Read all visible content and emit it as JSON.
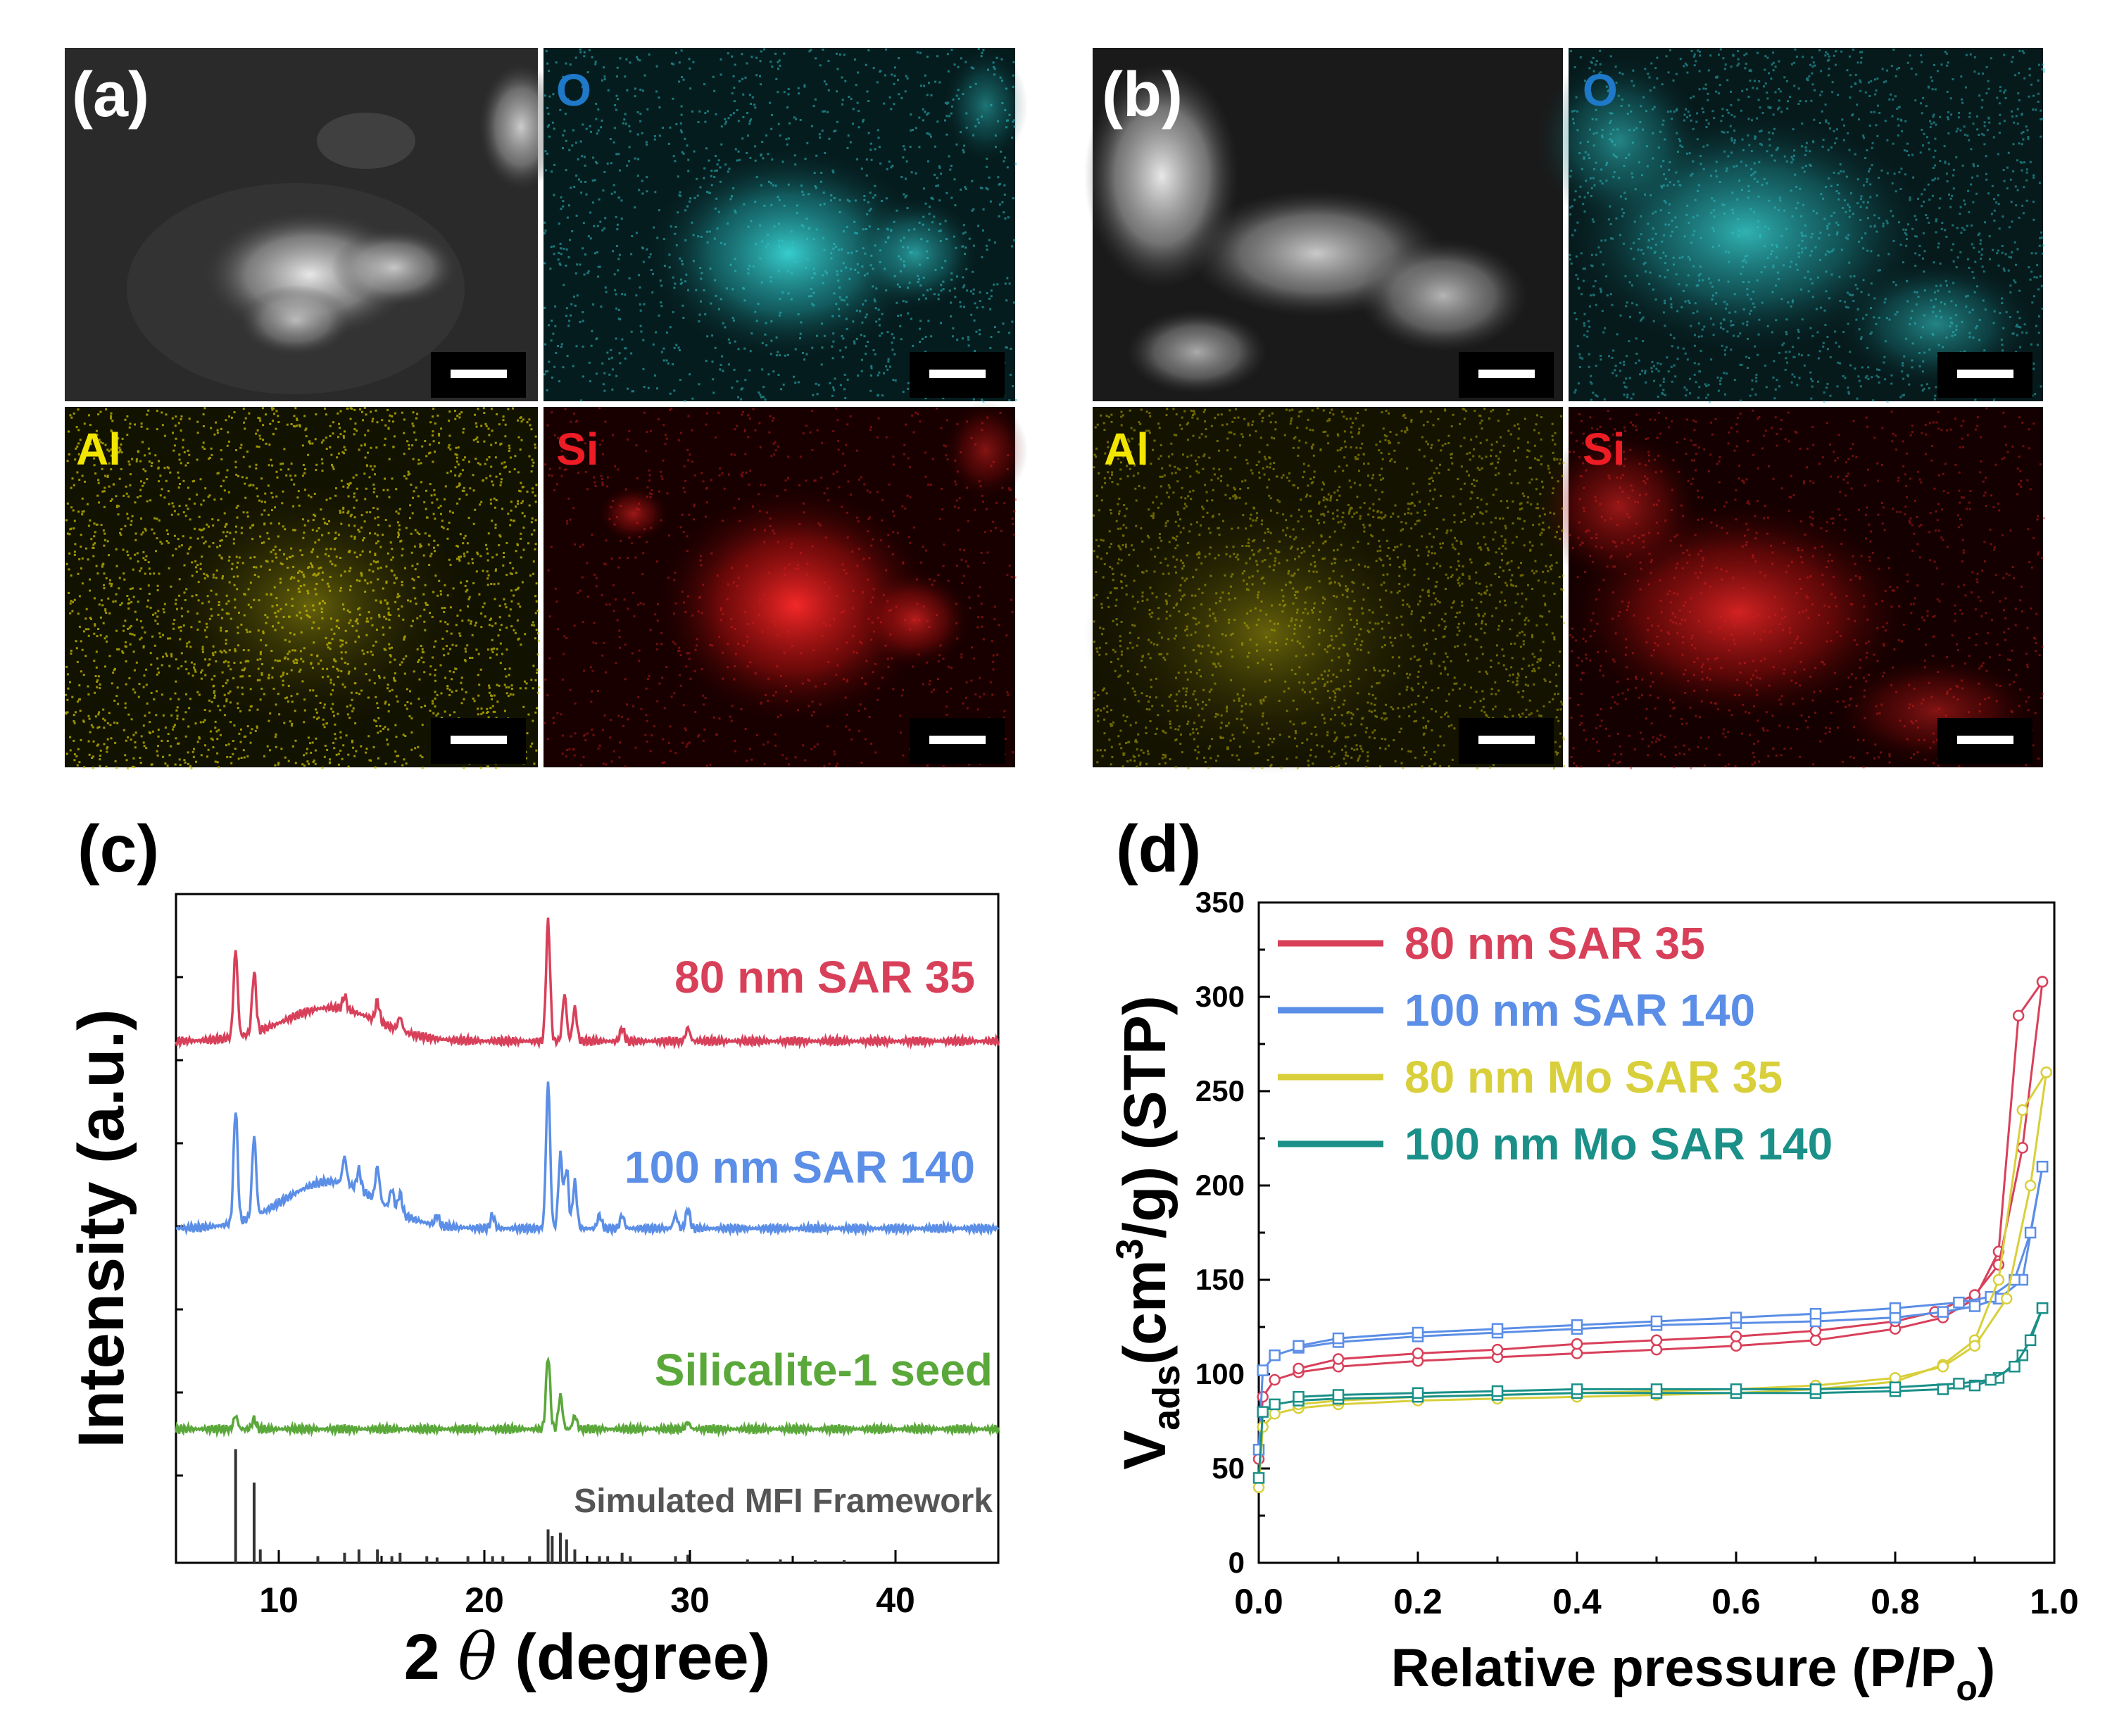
{
  "panels": {
    "a": {
      "label": "(a)",
      "tiles": [
        {
          "kind": "sem",
          "element": ""
        },
        {
          "kind": "map",
          "element": "O",
          "color": "#1f78c8",
          "dot": "#2ec6cc"
        },
        {
          "kind": "map",
          "element": "Al",
          "color": "#f2e600",
          "dot": "#c8c000"
        },
        {
          "kind": "map",
          "element": "Si",
          "color": "#ee1c24",
          "dot": "#e02020"
        }
      ]
    },
    "b": {
      "label": "(b)",
      "tiles": [
        {
          "kind": "sem",
          "element": ""
        },
        {
          "kind": "map",
          "element": "O",
          "color": "#1f78c8",
          "dot": "#2ec6cc"
        },
        {
          "kind": "map",
          "element": "Al",
          "color": "#f2e600",
          "dot": "#b8b000"
        },
        {
          "kind": "map",
          "element": "Si",
          "color": "#ee1c24",
          "dot": "#e02020"
        }
      ]
    },
    "c": {
      "label": "(c)"
    },
    "d": {
      "label": "(d)"
    }
  },
  "chart_data": [
    {
      "type": "line",
      "panel": "c",
      "xlabel_prefix": "2 ",
      "xlabel_symbol": "θ",
      "xlabel_suffix": " (degree)",
      "ylabel": "Intensity (a.u.)",
      "xlim": [
        5,
        45
      ],
      "xticks": [
        10,
        20,
        30,
        40
      ],
      "series": [
        {
          "name": "80 nm SAR 35",
          "color": "#d8405a",
          "offset": 0.78,
          "peaks": [
            [
              7.9,
              0.13
            ],
            [
              8.8,
              0.09
            ],
            [
              13.2,
              0.02
            ],
            [
              14.8,
              0.03
            ],
            [
              15.9,
              0.02
            ],
            [
              23.1,
              0.18
            ],
            [
              23.9,
              0.07
            ],
            [
              24.4,
              0.05
            ],
            [
              26.7,
              0.02
            ],
            [
              29.9,
              0.02
            ]
          ],
          "hump": 0.05
        },
        {
          "name": "100 nm SAR 140",
          "color": "#5b8ee6",
          "offset": 0.5,
          "peaks": [
            [
              7.9,
              0.17
            ],
            [
              8.8,
              0.12
            ],
            [
              13.2,
              0.04
            ],
            [
              13.9,
              0.03
            ],
            [
              14.8,
              0.05
            ],
            [
              15.5,
              0.03
            ],
            [
              15.9,
              0.03
            ],
            [
              17.7,
              0.015
            ],
            [
              20.4,
              0.02
            ],
            [
              23.1,
              0.22
            ],
            [
              23.7,
              0.11
            ],
            [
              24.0,
              0.09
            ],
            [
              24.4,
              0.07
            ],
            [
              25.6,
              0.02
            ],
            [
              26.7,
              0.02
            ],
            [
              29.3,
              0.02
            ],
            [
              29.9,
              0.03
            ]
          ],
          "hump": 0.07
        },
        {
          "name": "Silicalite-1 seed",
          "color": "#5aa83a",
          "offset": 0.2,
          "peaks": [
            [
              7.9,
              0.02
            ],
            [
              8.8,
              0.015
            ],
            [
              23.1,
              0.11
            ],
            [
              23.7,
              0.05
            ],
            [
              24.4,
              0.02
            ],
            [
              29.9,
              0.01
            ]
          ],
          "hump": 0.0
        }
      ],
      "reference": {
        "name": "Simulated MFI Framework",
        "color": "#333333",
        "sticks": [
          [
            7.9,
            0.17
          ],
          [
            8.8,
            0.12
          ],
          [
            9.1,
            0.02
          ],
          [
            11.9,
            0.01
          ],
          [
            13.2,
            0.015
          ],
          [
            13.9,
            0.02
          ],
          [
            14.8,
            0.02
          ],
          [
            15.5,
            0.01
          ],
          [
            15.9,
            0.015
          ],
          [
            17.2,
            0.01
          ],
          [
            17.7,
            0.008
          ],
          [
            19.2,
            0.01
          ],
          [
            20.4,
            0.01
          ],
          [
            20.9,
            0.01
          ],
          [
            22.2,
            0.01
          ],
          [
            23.1,
            0.05
          ],
          [
            23.3,
            0.04
          ],
          [
            23.7,
            0.045
          ],
          [
            24.0,
            0.035
          ],
          [
            24.4,
            0.02
          ],
          [
            25.6,
            0.01
          ],
          [
            26.0,
            0.01
          ],
          [
            26.7,
            0.015
          ],
          [
            27.1,
            0.01
          ],
          [
            29.3,
            0.01
          ],
          [
            29.9,
            0.012
          ],
          [
            32.8,
            0.005
          ],
          [
            34.4,
            0.005
          ],
          [
            36.1,
            0.004
          ],
          [
            37.5,
            0.004
          ]
        ]
      }
    },
    {
      "type": "line",
      "panel": "d",
      "xlabel": "Relative pressure (P/P",
      "xlabel_sub": "o",
      "xlabel_end": ")",
      "ylabel_main": "V",
      "ylabel_sub": "ads",
      "ylabel_unit_a": "(cm",
      "ylabel_sup": "3",
      "ylabel_unit_b": "/g) (STP)",
      "xlim": [
        0.0,
        1.0
      ],
      "ylim": [
        0,
        350
      ],
      "xticks": [
        "0.0",
        "0.2",
        "0.4",
        "0.6",
        "0.8",
        "1.0"
      ],
      "yticks": [
        "0",
        "50",
        "100",
        "150",
        "200",
        "250",
        "300",
        "350"
      ],
      "legend_position": "top-left",
      "series": [
        {
          "name": "80 nm SAR 35",
          "color": "#d8405a",
          "marker": "circle",
          "adsorption": [
            [
              0.0,
              55
            ],
            [
              0.005,
              88
            ],
            [
              0.02,
              97
            ],
            [
              0.05,
              101
            ],
            [
              0.1,
              104
            ],
            [
              0.2,
              107
            ],
            [
              0.3,
              109
            ],
            [
              0.4,
              111
            ],
            [
              0.5,
              113
            ],
            [
              0.6,
              115
            ],
            [
              0.7,
              118
            ],
            [
              0.8,
              124
            ],
            [
              0.86,
              130
            ],
            [
              0.9,
              140
            ],
            [
              0.93,
              165
            ],
            [
              0.955,
              290
            ],
            [
              0.985,
              308
            ]
          ],
          "desorption": [
            [
              0.985,
              308
            ],
            [
              0.96,
              220
            ],
            [
              0.93,
              158
            ],
            [
              0.9,
              142
            ],
            [
              0.85,
              133
            ],
            [
              0.8,
              128
            ],
            [
              0.7,
              123
            ],
            [
              0.6,
              120
            ],
            [
              0.5,
              118
            ],
            [
              0.4,
              116
            ],
            [
              0.3,
              113
            ],
            [
              0.2,
              111
            ],
            [
              0.1,
              108
            ],
            [
              0.05,
              103
            ]
          ]
        },
        {
          "name": "100 nm SAR 140",
          "color": "#5b8ee6",
          "marker": "square",
          "adsorption": [
            [
              0.0,
              60
            ],
            [
              0.005,
              102
            ],
            [
              0.02,
              110
            ],
            [
              0.05,
              114
            ],
            [
              0.1,
              117
            ],
            [
              0.2,
              120
            ],
            [
              0.3,
              122
            ],
            [
              0.4,
              124
            ],
            [
              0.5,
              126
            ],
            [
              0.6,
              127
            ],
            [
              0.7,
              128
            ],
            [
              0.8,
              130
            ],
            [
              0.86,
              133
            ],
            [
              0.9,
              136
            ],
            [
              0.93,
              140
            ],
            [
              0.96,
              150
            ],
            [
              0.985,
              210
            ]
          ],
          "desorption": [
            [
              0.985,
              210
            ],
            [
              0.97,
              175
            ],
            [
              0.95,
              150
            ],
            [
              0.92,
              141
            ],
            [
              0.88,
              138
            ],
            [
              0.8,
              135
            ],
            [
              0.7,
              132
            ],
            [
              0.6,
              130
            ],
            [
              0.5,
              128
            ],
            [
              0.4,
              126
            ],
            [
              0.3,
              124
            ],
            [
              0.2,
              122
            ],
            [
              0.1,
              119
            ],
            [
              0.05,
              115
            ]
          ]
        },
        {
          "name": "80 nm Mo SAR 35",
          "color": "#d8cf3a",
          "marker": "circle",
          "adsorption": [
            [
              0.0,
              40
            ],
            [
              0.005,
              72
            ],
            [
              0.02,
              79
            ],
            [
              0.05,
              82
            ],
            [
              0.1,
              84
            ],
            [
              0.2,
              86
            ],
            [
              0.3,
              87
            ],
            [
              0.4,
              88
            ],
            [
              0.5,
              89
            ],
            [
              0.6,
              90
            ],
            [
              0.7,
              92
            ],
            [
              0.8,
              96
            ],
            [
              0.86,
              105
            ],
            [
              0.9,
              118
            ],
            [
              0.93,
              150
            ],
            [
              0.96,
              240
            ],
            [
              0.99,
              260
            ]
          ],
          "desorption": [
            [
              0.99,
              260
            ],
            [
              0.97,
              200
            ],
            [
              0.94,
              140
            ],
            [
              0.9,
              115
            ],
            [
              0.86,
              104
            ],
            [
              0.8,
              98
            ],
            [
              0.7,
              94
            ],
            [
              0.6,
              92
            ],
            [
              0.5,
              91
            ],
            [
              0.4,
              90
            ],
            [
              0.3,
              89
            ],
            [
              0.2,
              88
            ],
            [
              0.1,
              86
            ],
            [
              0.05,
              84
            ]
          ]
        },
        {
          "name": "100 nm Mo SAR 140",
          "color": "#1a9088",
          "marker": "square",
          "adsorption": [
            [
              0.0,
              45
            ],
            [
              0.005,
              80
            ],
            [
              0.02,
              84
            ],
            [
              0.05,
              86
            ],
            [
              0.1,
              87
            ],
            [
              0.2,
              88
            ],
            [
              0.3,
              89
            ],
            [
              0.4,
              90
            ],
            [
              0.5,
              90
            ],
            [
              0.6,
              90
            ],
            [
              0.7,
              90
            ],
            [
              0.8,
              91
            ],
            [
              0.86,
              92
            ],
            [
              0.9,
              94
            ],
            [
              0.93,
              98
            ],
            [
              0.96,
              110
            ],
            [
              0.985,
              135
            ]
          ],
          "desorption": [
            [
              0.985,
              135
            ],
            [
              0.97,
              118
            ],
            [
              0.95,
              104
            ],
            [
              0.92,
              97
            ],
            [
              0.88,
              95
            ],
            [
              0.8,
              93
            ],
            [
              0.7,
              92
            ],
            [
              0.6,
              92
            ],
            [
              0.5,
              92
            ],
            [
              0.4,
              92
            ],
            [
              0.3,
              91
            ],
            [
              0.2,
              90
            ],
            [
              0.1,
              89
            ],
            [
              0.05,
              88
            ]
          ]
        }
      ]
    }
  ]
}
